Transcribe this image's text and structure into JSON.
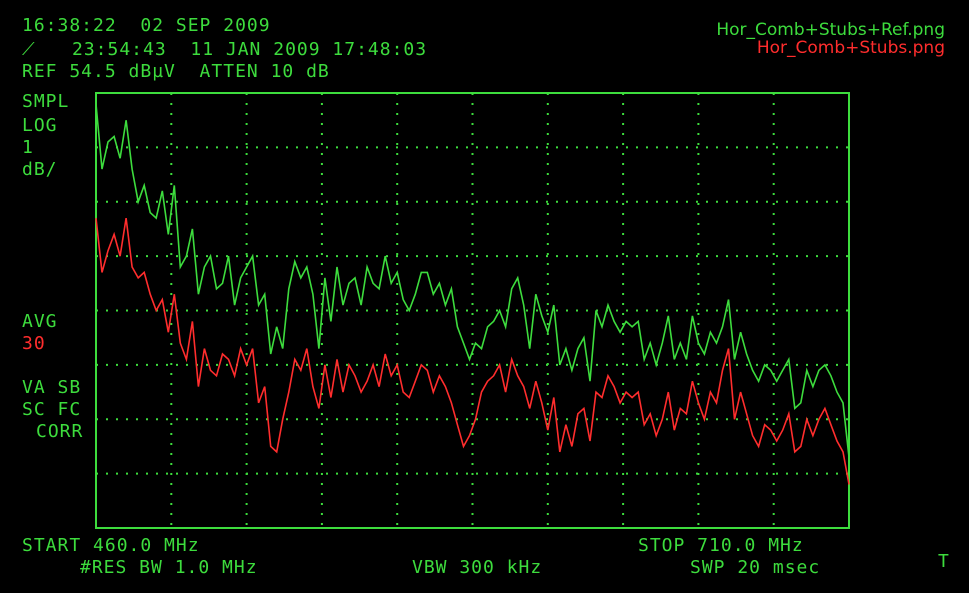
{
  "header": {
    "clock": "16:38:22  02 SEP 2009",
    "recall_line": "23:54:43  11 JAN 2009 17:48:03",
    "ref_line": "REF 54.5 dBµV  ATTEN 10 dB"
  },
  "files": {
    "green": "Hor_Comb+Stubs+Ref.png",
    "red": "Hor_Comb+Stubs.png"
  },
  "left_panel": {
    "mode": "SMPL",
    "scale_type": "LOG",
    "scale_value": "1",
    "scale_unit": "dB/",
    "avg_label": "AVG",
    "avg_value": "30",
    "flags1": "VA SB",
    "flags2": "SC FC",
    "flags3": "CORR"
  },
  "footer": {
    "start": "START 460.0 MHz",
    "stop": "STOP 710.0 MHz",
    "rbw": "#RES BW 1.0 MHz",
    "vbw": "VBW 300 kHz",
    "swp": "SWP 20 msec",
    "marker": "T"
  },
  "colors": {
    "trace_green": "#3ddc3d",
    "trace_red": "#ff2d2d",
    "grid": "#3ddc3d",
    "background": "#000000"
  },
  "chart_data": {
    "type": "line",
    "x_unit": "MHz",
    "xlim": [
      460.0,
      710.0
    ],
    "ylim": [
      46.5,
      54.5
    ],
    "y_scale": "1 dB/div, ref at top",
    "grid": true,
    "series": [
      {
        "name": "Hor_Comb+Stubs+Ref.png",
        "color": "#3ddc3d",
        "x": [
          460,
          462,
          464,
          466,
          468,
          470,
          472,
          474,
          476,
          478,
          480,
          482,
          484,
          486,
          488,
          490,
          492,
          494,
          496,
          498,
          500,
          502,
          504,
          506,
          508,
          510,
          512,
          514,
          516,
          518,
          520,
          522,
          524,
          526,
          528,
          530,
          532,
          534,
          536,
          538,
          540,
          542,
          544,
          546,
          548,
          550,
          552,
          554,
          556,
          558,
          560,
          562,
          564,
          566,
          568,
          570,
          572,
          574,
          576,
          578,
          580,
          582,
          584,
          586,
          588,
          590,
          592,
          594,
          596,
          598,
          600,
          602,
          604,
          606,
          608,
          610,
          612,
          614,
          616,
          618,
          620,
          622,
          624,
          626,
          628,
          630,
          632,
          634,
          636,
          638,
          640,
          642,
          644,
          646,
          648,
          650,
          652,
          654,
          656,
          658,
          660,
          662,
          664,
          666,
          668,
          670,
          672,
          674,
          676,
          678,
          680,
          682,
          684,
          686,
          688,
          690,
          692,
          694,
          696,
          698,
          700,
          702,
          704,
          706,
          708,
          710
        ],
        "values": [
          54.3,
          53.1,
          53.6,
          53.7,
          53.3,
          54.0,
          53.1,
          52.5,
          52.8,
          52.3,
          52.2,
          52.7,
          51.9,
          52.8,
          51.3,
          51.5,
          52.0,
          50.8,
          51.3,
          51.5,
          50.9,
          51.0,
          51.5,
          50.6,
          51.1,
          51.3,
          51.5,
          50.6,
          50.8,
          49.7,
          50.2,
          49.8,
          50.9,
          51.4,
          51.1,
          51.3,
          50.8,
          49.8,
          51.1,
          50.3,
          51.3,
          50.6,
          51.0,
          51.1,
          50.6,
          51.3,
          51.0,
          50.9,
          51.5,
          51.0,
          51.2,
          50.7,
          50.5,
          50.8,
          51.2,
          51.2,
          50.8,
          51.0,
          50.6,
          50.9,
          50.2,
          49.9,
          49.6,
          49.9,
          49.8,
          50.2,
          50.3,
          50.5,
          50.2,
          50.9,
          51.1,
          50.6,
          49.8,
          50.8,
          50.4,
          50.1,
          50.6,
          49.5,
          49.8,
          49.4,
          49.8,
          50.0,
          49.2,
          50.5,
          50.2,
          50.6,
          50.3,
          50.1,
          50.3,
          50.2,
          50.3,
          49.6,
          49.9,
          49.5,
          49.9,
          50.4,
          49.6,
          49.9,
          49.6,
          50.4,
          49.9,
          49.7,
          50.1,
          49.9,
          50.2,
          50.7,
          49.6,
          50.1,
          49.7,
          49.4,
          49.2,
          49.5,
          49.4,
          49.2,
          49.4,
          49.6,
          48.7,
          48.8,
          49.4,
          49.1,
          49.4,
          49.5,
          49.3,
          49.0,
          48.8,
          47.8
        ]
      },
      {
        "name": "Hor_Comb+Stubs.png",
        "color": "#ff2d2d",
        "x": [
          460,
          462,
          464,
          466,
          468,
          470,
          472,
          474,
          476,
          478,
          480,
          482,
          484,
          486,
          488,
          490,
          492,
          494,
          496,
          498,
          500,
          502,
          504,
          506,
          508,
          510,
          512,
          514,
          516,
          518,
          520,
          522,
          524,
          526,
          528,
          530,
          532,
          534,
          536,
          538,
          540,
          542,
          544,
          546,
          548,
          550,
          552,
          554,
          556,
          558,
          560,
          562,
          564,
          566,
          568,
          570,
          572,
          574,
          576,
          578,
          580,
          582,
          584,
          586,
          588,
          590,
          592,
          594,
          596,
          598,
          600,
          602,
          604,
          606,
          608,
          610,
          612,
          614,
          616,
          618,
          620,
          622,
          624,
          626,
          628,
          630,
          632,
          634,
          636,
          638,
          640,
          642,
          644,
          646,
          648,
          650,
          652,
          654,
          656,
          658,
          660,
          662,
          664,
          666,
          668,
          670,
          672,
          674,
          676,
          678,
          680,
          682,
          684,
          686,
          688,
          690,
          692,
          694,
          696,
          698,
          700,
          702,
          704,
          706,
          708,
          710
        ],
        "values": [
          52.2,
          51.2,
          51.6,
          51.9,
          51.5,
          52.2,
          51.3,
          51.1,
          51.2,
          50.8,
          50.5,
          50.7,
          50.1,
          50.8,
          49.9,
          49.6,
          50.3,
          49.1,
          49.8,
          49.4,
          49.3,
          49.7,
          49.6,
          49.3,
          49.8,
          49.5,
          49.8,
          48.8,
          49.1,
          48.0,
          47.9,
          48.5,
          49.0,
          49.6,
          49.4,
          49.8,
          49.1,
          48.7,
          49.5,
          48.9,
          49.6,
          49.0,
          49.5,
          49.3,
          49.0,
          49.2,
          49.5,
          49.1,
          49.7,
          49.3,
          49.5,
          49.0,
          48.9,
          49.2,
          49.5,
          49.4,
          49.0,
          49.3,
          49.1,
          48.8,
          48.4,
          48.0,
          48.2,
          48.5,
          49.0,
          49.2,
          49.3,
          49.5,
          49.0,
          49.6,
          49.3,
          49.1,
          48.7,
          49.2,
          48.8,
          48.3,
          48.9,
          47.9,
          48.4,
          48.0,
          48.6,
          48.7,
          48.1,
          49.0,
          48.9,
          49.3,
          49.1,
          48.8,
          49.0,
          48.9,
          49.0,
          48.4,
          48.6,
          48.2,
          48.5,
          49.0,
          48.3,
          48.7,
          48.6,
          49.2,
          48.8,
          48.5,
          49.0,
          48.8,
          49.4,
          49.8,
          48.5,
          49.0,
          48.6,
          48.2,
          48.0,
          48.4,
          48.3,
          48.1,
          48.3,
          48.6,
          47.9,
          48.0,
          48.5,
          48.2,
          48.5,
          48.7,
          48.4,
          48.1,
          47.9,
          47.3
        ]
      }
    ]
  }
}
